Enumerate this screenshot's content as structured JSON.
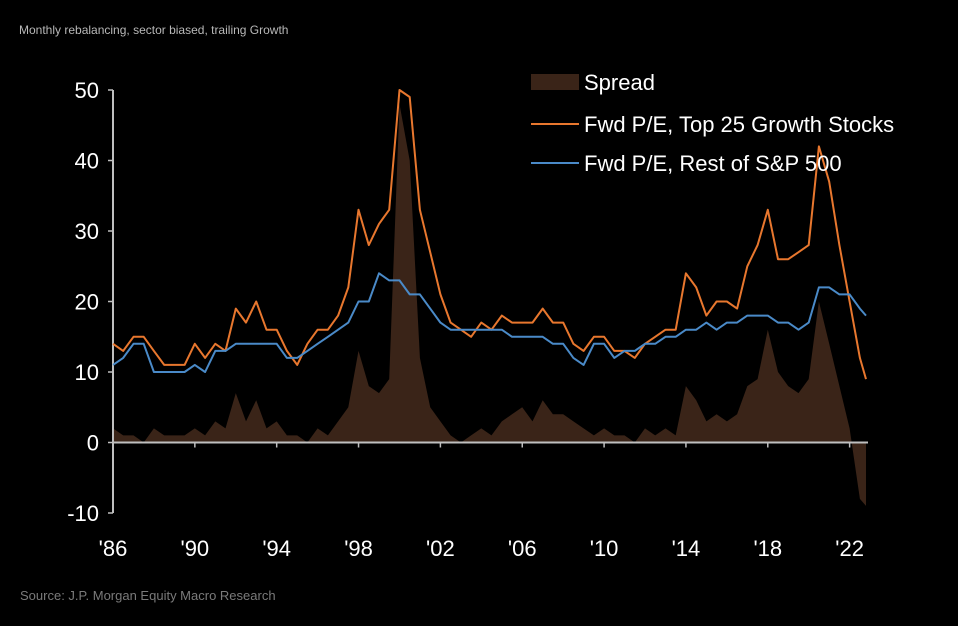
{
  "subtitle": "Monthly rebalancing, sector biased, trailing Growth",
  "source": "Source: J.P. Morgan Equity Macro Research",
  "colors": {
    "spread": "#3a2418",
    "growth": "#e8772e",
    "rest": "#4a8ac8",
    "axis": "#bfbfbf"
  },
  "chart_data": {
    "type": "line",
    "title": "",
    "ylim": [
      -10,
      50
    ],
    "xlim": [
      1986,
      2022.8
    ],
    "yticks": [
      50,
      40,
      30,
      20,
      10,
      0,
      -10
    ],
    "xticks": [
      {
        "label": "'86",
        "year": 1986
      },
      {
        "label": "'90",
        "year": 1990
      },
      {
        "label": "'94",
        "year": 1994
      },
      {
        "label": "'98",
        "year": 1998
      },
      {
        "label": "'02",
        "year": 2002
      },
      {
        "label": "'06",
        "year": 2006
      },
      {
        "label": "'10",
        "year": 2010
      },
      {
        "label": "'14",
        "year": 2014
      },
      {
        "label": "'18",
        "year": 2018
      },
      {
        "label": "'22",
        "year": 2022
      }
    ],
    "legend_position": "top-right",
    "x": [
      1986,
      1986.5,
      1987,
      1987.5,
      1988,
      1988.5,
      1989,
      1989.5,
      1990,
      1990.5,
      1991,
      1991.5,
      1992,
      1992.5,
      1993,
      1993.5,
      1994,
      1994.5,
      1995,
      1995.5,
      1996,
      1996.5,
      1997,
      1997.5,
      1998,
      1998.5,
      1999,
      1999.5,
      2000,
      2000.5,
      2001,
      2001.5,
      2002,
      2002.5,
      2003,
      2003.5,
      2004,
      2004.5,
      2005,
      2005.5,
      2006,
      2006.5,
      2007,
      2007.5,
      2008,
      2008.5,
      2009,
      2009.5,
      2010,
      2010.5,
      2011,
      2011.5,
      2012,
      2012.5,
      2013,
      2013.5,
      2014,
      2014.5,
      2015,
      2015.5,
      2016,
      2016.5,
      2017,
      2017.5,
      2018,
      2018.5,
      2019,
      2019.5,
      2020,
      2020.5,
      2021,
      2021.5,
      2022,
      2022.5,
      2022.8
    ],
    "series": [
      {
        "name": "Spread",
        "type": "area",
        "values": [
          2,
          1,
          1,
          0,
          2,
          1,
          1,
          1,
          2,
          1,
          3,
          2,
          7,
          3,
          6,
          2,
          3,
          1,
          1,
          0,
          2,
          1,
          3,
          5,
          13,
          8,
          7,
          9,
          48,
          40,
          12,
          5,
          3,
          1,
          0,
          1,
          2,
          1,
          3,
          4,
          5,
          3,
          6,
          4,
          4,
          3,
          2,
          1,
          2,
          1,
          1,
          0,
          2,
          1,
          2,
          1,
          8,
          6,
          3,
          4,
          3,
          4,
          8,
          9,
          16,
          10,
          8,
          7,
          9,
          20,
          14,
          8,
          2,
          -8,
          -9
        ]
      },
      {
        "name": "Fwd P/E, Top 25 Growth Stocks",
        "type": "line",
        "values": [
          14,
          13,
          15,
          15,
          13,
          11,
          11,
          11,
          14,
          12,
          14,
          13,
          19,
          17,
          20,
          16,
          16,
          13,
          11,
          14,
          16,
          16,
          18,
          22,
          33,
          28,
          31,
          33,
          50,
          49,
          33,
          27,
          21,
          17,
          16,
          15,
          17,
          16,
          18,
          17,
          17,
          17,
          19,
          17,
          17,
          14,
          13,
          15,
          15,
          13,
          13,
          12,
          14,
          15,
          16,
          16,
          24,
          22,
          18,
          20,
          20,
          19,
          25,
          28,
          33,
          26,
          26,
          27,
          28,
          42,
          37,
          28,
          20,
          12,
          9
        ]
      },
      {
        "name": "Fwd P/E, Rest of S&P 500",
        "type": "line",
        "values": [
          11,
          12,
          14,
          14,
          10,
          10,
          10,
          10,
          11,
          10,
          13,
          13,
          14,
          14,
          14,
          14,
          14,
          12,
          12,
          13,
          14,
          15,
          16,
          17,
          20,
          20,
          24,
          23,
          23,
          21,
          21,
          19,
          17,
          16,
          16,
          16,
          16,
          16,
          16,
          15,
          15,
          15,
          15,
          14,
          14,
          12,
          11,
          14,
          14,
          12,
          13,
          13,
          14,
          14,
          15,
          15,
          16,
          16,
          17,
          16,
          17,
          17,
          18,
          18,
          18,
          17,
          17,
          16,
          17,
          22,
          22,
          21,
          21,
          19,
          18
        ]
      }
    ]
  }
}
